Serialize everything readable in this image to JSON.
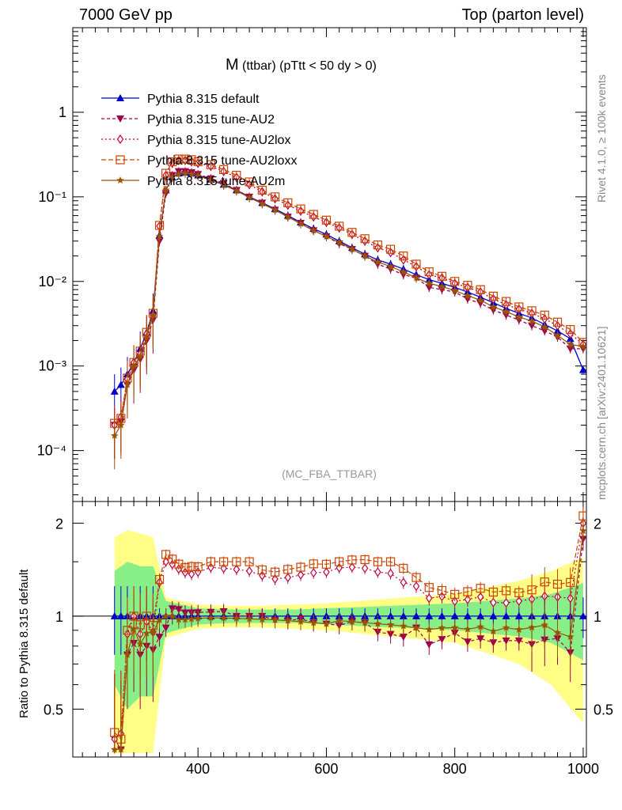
{
  "header": {
    "left": "7000 GeV pp",
    "right": "Top (parton level)"
  },
  "side_texts": {
    "rivet": "Rivet 4.1.0, ≥ 100k events",
    "mcplots": "mcplots.cern.ch [arXiv:2401.10621]"
  },
  "colors": {
    "default": "#0000cc",
    "au2": "#a0004a",
    "au2lox": "#c00040",
    "au2loxx": "#cc4400",
    "au2m": "#995500",
    "band_green": "#88ee88",
    "band_yellow": "#ffff88"
  },
  "chart_data": {
    "type": "line",
    "title_main": "M",
    "title_sub": "(ttbar) (pTtt < 50 dy > 0)",
    "watermark": "(MC_FBA_TTBAR)",
    "xlabel": "",
    "ylabel_ratio": "Ratio to Pythia 8.315 default",
    "xlim": [
      205,
      1005
    ],
    "ylim_log": [
      2.5e-05,
      10
    ],
    "ratio_ylim": [
      0.35,
      2.35
    ],
    "x_ticks": [
      "400",
      "600",
      "800",
      "1000"
    ],
    "y_ticks": [
      "1",
      "10⁻¹",
      "10⁻²",
      "10⁻³",
      "10⁻⁴"
    ],
    "ratio_ticks": [
      "2",
      "1",
      "0.5"
    ],
    "x": [
      270,
      280,
      290,
      300,
      310,
      320,
      330,
      340,
      350,
      360,
      370,
      380,
      390,
      400,
      420,
      440,
      460,
      480,
      500,
      520,
      540,
      560,
      580,
      600,
      620,
      640,
      660,
      680,
      700,
      720,
      740,
      760,
      780,
      800,
      820,
      840,
      860,
      880,
      900,
      920,
      940,
      960,
      980,
      1000
    ],
    "series": [
      {
        "name": "Pythia 8.315 default",
        "marker": "triangle",
        "dash": "",
        "values": [
          0.0005,
          0.0006,
          0.0008,
          0.0011,
          0.0016,
          0.0025,
          0.0045,
          0.035,
          0.12,
          0.17,
          0.19,
          0.195,
          0.19,
          0.18,
          0.16,
          0.14,
          0.12,
          0.1,
          0.085,
          0.072,
          0.06,
          0.05,
          0.042,
          0.036,
          0.03,
          0.025,
          0.021,
          0.018,
          0.016,
          0.014,
          0.012,
          0.0105,
          0.0095,
          0.0085,
          0.0075,
          0.0065,
          0.0056,
          0.0048,
          0.0042,
          0.0037,
          0.0031,
          0.0026,
          0.0021,
          0.0009
        ]
      },
      {
        "name": "Pythia 8.315 tune-AU2",
        "marker": "triangle-down",
        "dash": "4,3",
        "values": [
          0.0002,
          0.00022,
          0.0006,
          0.0009,
          0.0012,
          0.002,
          0.0035,
          0.03,
          0.11,
          0.18,
          0.2,
          0.2,
          0.195,
          0.185,
          0.165,
          0.145,
          0.12,
          0.1,
          0.085,
          0.07,
          0.058,
          0.049,
          0.04,
          0.034,
          0.028,
          0.024,
          0.02,
          0.016,
          0.014,
          0.012,
          0.011,
          0.0085,
          0.008,
          0.0075,
          0.0062,
          0.0055,
          0.0046,
          0.004,
          0.0035,
          0.003,
          0.0026,
          0.0022,
          0.0016,
          0.0016
        ]
      },
      {
        "name": "Pythia 8.315 tune-AU2lox",
        "marker": "diamond",
        "dash": "2,3",
        "values": [
          0.0002,
          0.00025,
          0.0007,
          0.0011,
          0.0014,
          0.0024,
          0.004,
          0.045,
          0.18,
          0.25,
          0.27,
          0.27,
          0.26,
          0.25,
          0.23,
          0.2,
          0.17,
          0.14,
          0.115,
          0.095,
          0.08,
          0.068,
          0.058,
          0.05,
          0.043,
          0.036,
          0.03,
          0.025,
          0.022,
          0.018,
          0.015,
          0.012,
          0.011,
          0.0095,
          0.0085,
          0.0075,
          0.0062,
          0.0053,
          0.0047,
          0.0042,
          0.0036,
          0.003,
          0.0024,
          0.0018
        ]
      },
      {
        "name": "Pythia 8.315 tune-AU2loxx",
        "marker": "square",
        "dash": "6,3",
        "values": [
          0.00021,
          0.00024,
          0.00072,
          0.0011,
          0.0015,
          0.0025,
          0.0042,
          0.046,
          0.19,
          0.26,
          0.28,
          0.28,
          0.275,
          0.26,
          0.24,
          0.21,
          0.18,
          0.15,
          0.12,
          0.1,
          0.085,
          0.072,
          0.062,
          0.053,
          0.045,
          0.038,
          0.032,
          0.027,
          0.024,
          0.02,
          0.016,
          0.013,
          0.0115,
          0.01,
          0.009,
          0.008,
          0.0067,
          0.0058,
          0.005,
          0.0045,
          0.004,
          0.0033,
          0.0027,
          0.0019
        ]
      },
      {
        "name": "Pythia 8.315 tune-AU2m",
        "marker": "star",
        "dash": "",
        "values": [
          0.00015,
          0.0002,
          0.0006,
          0.001,
          0.0013,
          0.0022,
          0.004,
          0.034,
          0.12,
          0.17,
          0.185,
          0.19,
          0.186,
          0.177,
          0.158,
          0.138,
          0.118,
          0.098,
          0.083,
          0.07,
          0.058,
          0.048,
          0.04,
          0.034,
          0.029,
          0.024,
          0.02,
          0.017,
          0.015,
          0.013,
          0.011,
          0.0095,
          0.0087,
          0.0078,
          0.0068,
          0.006,
          0.005,
          0.0044,
          0.0038,
          0.0034,
          0.0029,
          0.0023,
          0.0018,
          0.0017
        ]
      }
    ],
    "ratio_band_x": [
      270,
      290,
      310,
      330,
      350,
      400,
      450,
      500,
      550,
      600,
      650,
      700,
      750,
      800,
      850,
      900,
      950,
      1000
    ],
    "ratio_band_green": [
      0.4,
      0.5,
      0.45,
      0.45,
      0.12,
      0.06,
      0.05,
      0.05,
      0.05,
      0.06,
      0.07,
      0.08,
      0.09,
      0.1,
      0.12,
      0.14,
      0.18,
      0.28
    ],
    "ratio_band_yellow": [
      0.8,
      0.9,
      0.85,
      0.8,
      0.15,
      0.09,
      0.08,
      0.08,
      0.09,
      0.1,
      0.12,
      0.14,
      0.16,
      0.18,
      0.24,
      0.3,
      0.4,
      0.55
    ]
  }
}
